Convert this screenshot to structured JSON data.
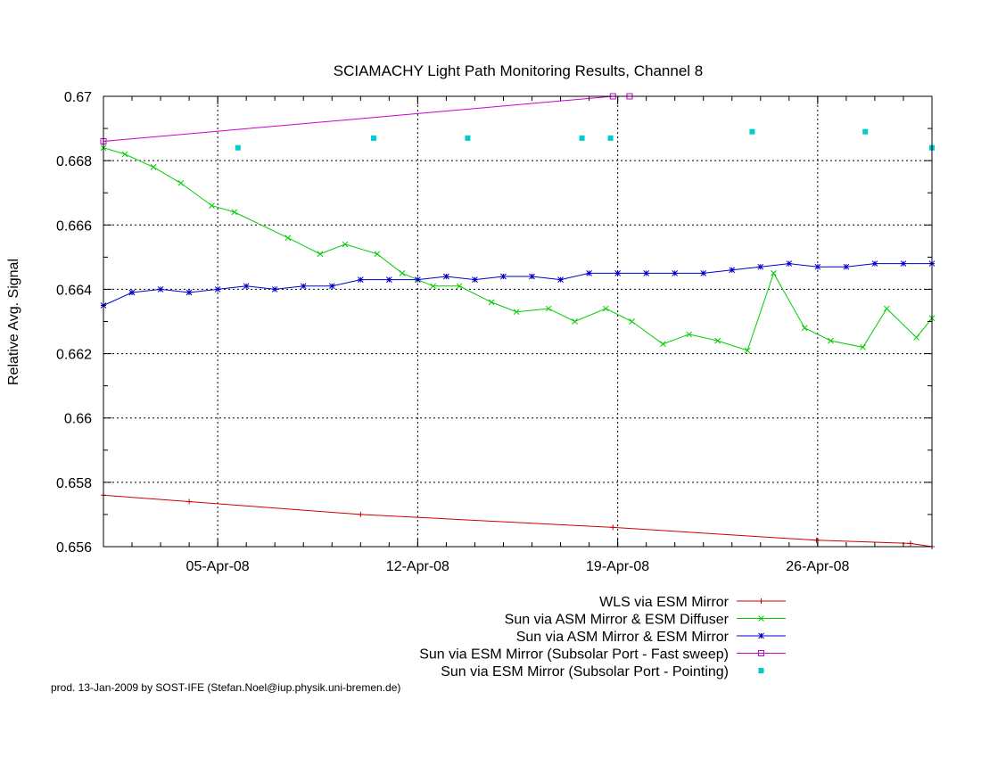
{
  "chart_data": {
    "type": "line",
    "title": "SCIAMACHY Light Path Monitoring Results, Channel 8",
    "xlabel": "",
    "ylabel": "Relative Avg. Signal",
    "x_type": "date",
    "xlim": [
      "2008-04-01",
      "2008-04-30"
    ],
    "ylim": [
      0.656,
      0.67
    ],
    "y_ticks": [
      0.656,
      0.658,
      0.66,
      0.662,
      0.664,
      0.666,
      0.668,
      0.67
    ],
    "y_tick_labels": [
      "0.656",
      "0.658",
      "0.66",
      "0.662",
      "0.664",
      "0.666",
      "0.668",
      "0.67"
    ],
    "x_ticks": [
      "2008-04-05",
      "2008-04-12",
      "2008-04-19",
      "2008-04-26"
    ],
    "x_tick_labels": [
      "05-Apr-08",
      "12-Apr-08",
      "19-Apr-08",
      "26-Apr-08"
    ],
    "grid": true,
    "legend_position": "bottom-right, below plot",
    "footer": "prod. 13-Jan-2009 by SOST-IFE (Stefan.Noel@iup.physik.uni-bremen.de)",
    "series": [
      {
        "name": "WLS via ESM Mirror",
        "color": "#cc0000",
        "marker": "plus",
        "x": [
          "2008-04-01",
          "2008-04-04 00:00",
          "2008-04-10 00:00",
          "2008-04-18 20:00",
          "2008-04-25 23:00",
          "2008-04-29 06:00",
          "2008-04-30"
        ],
        "y": [
          0.6576,
          0.6574,
          0.657,
          0.6566,
          0.6562,
          0.6561,
          0.656
        ]
      },
      {
        "name": "Sun via ASM Mirror & ESM Diffuser",
        "color": "#00cc00",
        "marker": "x",
        "x": [
          "2008-04-01",
          "2008-04-01 18:00",
          "2008-04-02 18:00",
          "2008-04-03 17:00",
          "2008-04-04 19:00",
          "2008-04-05 14:00",
          "2008-04-07 11:00",
          "2008-04-08 14:00",
          "2008-04-09 11:00",
          "2008-04-10 14:00",
          "2008-04-11 11:00",
          "2008-04-12 13:00",
          "2008-04-13 11:00",
          "2008-04-14 14:00",
          "2008-04-15 11:00",
          "2008-04-16 14:00",
          "2008-04-17 12:00",
          "2008-04-18 14:00",
          "2008-04-19 12:00",
          "2008-04-20 14:00",
          "2008-04-21 12:00",
          "2008-04-22 12:00",
          "2008-04-23 13:00",
          "2008-04-24 11:00",
          "2008-04-25 13:00",
          "2008-04-26 11:00",
          "2008-04-27 14:00",
          "2008-04-28 10:00",
          "2008-04-29 11:00",
          "2008-04-30"
        ],
        "y": [
          0.6684,
          0.6682,
          0.6678,
          0.6673,
          0.6666,
          0.6664,
          0.6656,
          0.6651,
          0.6654,
          0.6651,
          0.6645,
          0.6641,
          0.6641,
          0.6636,
          0.6633,
          0.6634,
          0.663,
          0.6634,
          0.663,
          0.6623,
          0.6626,
          0.6624,
          0.6621,
          0.6645,
          0.6628,
          0.6624,
          0.6622,
          0.6634,
          0.6625,
          0.6631
        ]
      },
      {
        "name": "Sun via ASM Mirror & ESM Mirror",
        "color": "#0000cc",
        "marker": "star",
        "x": [
          "2008-04-01",
          "2008-04-02 00:00",
          "2008-04-03 00:00",
          "2008-04-04 00:00",
          "2008-04-05 00:00",
          "2008-04-06 00:00",
          "2008-04-07 00:00",
          "2008-04-08 00:00",
          "2008-04-09 00:00",
          "2008-04-10 00:00",
          "2008-04-11 00:00",
          "2008-04-12 00:00",
          "2008-04-13 00:00",
          "2008-04-14 00:00",
          "2008-04-15 00:00",
          "2008-04-16 00:00",
          "2008-04-17 00:00",
          "2008-04-18 00:00",
          "2008-04-19 00:00",
          "2008-04-20 00:00",
          "2008-04-21 00:00",
          "2008-04-22 00:00",
          "2008-04-23 00:00",
          "2008-04-24 00:00",
          "2008-04-25 00:00",
          "2008-04-26 00:00",
          "2008-04-27 00:00",
          "2008-04-28 00:00",
          "2008-04-29 00:00",
          "2008-04-30"
        ],
        "y": [
          0.6635,
          0.6639,
          0.664,
          0.6639,
          0.664,
          0.6641,
          0.664,
          0.6641,
          0.6641,
          0.6643,
          0.6643,
          0.6643,
          0.6644,
          0.6643,
          0.6644,
          0.6644,
          0.6643,
          0.6645,
          0.6645,
          0.6645,
          0.6645,
          0.6645,
          0.6646,
          0.6647,
          0.6648,
          0.6647,
          0.6647,
          0.6648,
          0.6648,
          0.6648
        ]
      },
      {
        "name": "Sun via ESM Mirror (Subsolar Port - Fast sweep)",
        "color": "#cc00cc",
        "marker": "square",
        "x": [
          "2008-04-01",
          "2008-04-18 20:00",
          "2008-04-19 10:00"
        ],
        "y": [
          0.6686,
          0.67,
          0.67
        ]
      },
      {
        "name": "Sun via ESM Mirror (Subsolar Port - Pointing)",
        "color": "#00cccc",
        "marker": "filled-square",
        "points_only": true,
        "x": [
          "2008-04-05 17:00",
          "2008-04-10 11:00",
          "2008-04-13 18:00",
          "2008-04-17 18:00",
          "2008-04-18 18:00",
          "2008-04-23 17:00",
          "2008-04-27 16:00",
          "2008-04-30"
        ],
        "y": [
          0.6684,
          0.6687,
          0.6687,
          0.6687,
          0.6687,
          0.6689,
          0.6689,
          0.6684
        ]
      }
    ]
  }
}
